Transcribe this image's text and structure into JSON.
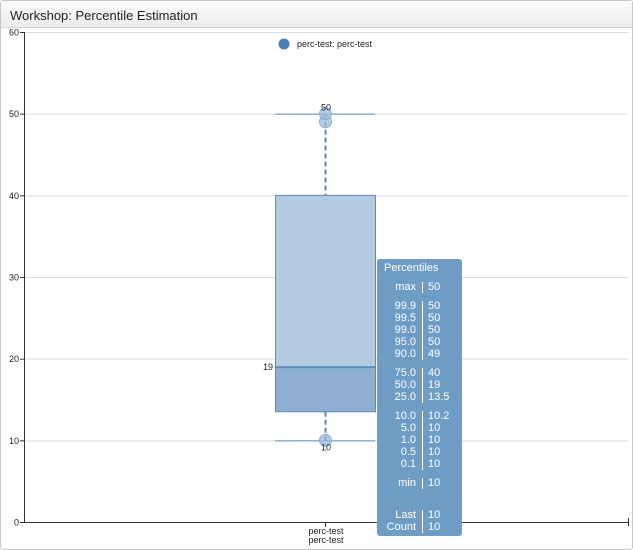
{
  "window": {
    "title": "Workshop: Percentile Estimation"
  },
  "legend": {
    "label": "perc-test: perc-test",
    "color": "#4a80b4"
  },
  "chart_data": {
    "type": "box",
    "categories": [
      "perc-test\nperc-test"
    ],
    "category_lines": [
      "perc-test",
      "perc-test"
    ],
    "ylim": [
      0,
      60
    ],
    "yticks": [
      0,
      10,
      20,
      30,
      40,
      50,
      60
    ],
    "grid": true,
    "legend_position": "top-center",
    "box": {
      "min": 10,
      "q1": 13.5,
      "median": 19,
      "q3": 40,
      "max": 50
    },
    "points": [
      10,
      49,
      50
    ],
    "labels": {
      "max": "50",
      "median": "19",
      "min": "10"
    },
    "colors": {
      "box_upper": "#b3cbe1",
      "box_lower": "#8fb0d2",
      "stroke": "#5b8dbb",
      "point": "#9bb9d8"
    }
  },
  "tooltip": {
    "title": "Percentiles",
    "groups": [
      [
        {
          "k": "max",
          "v": "50"
        }
      ],
      [
        {
          "k": "99.9",
          "v": "50"
        },
        {
          "k": "99.5",
          "v": "50"
        },
        {
          "k": "99.0",
          "v": "50"
        },
        {
          "k": "95.0",
          "v": "50"
        },
        {
          "k": "90.0",
          "v": "49"
        }
      ],
      [
        {
          "k": "75.0",
          "v": "40"
        },
        {
          "k": "50.0",
          "v": "19"
        },
        {
          "k": "25.0",
          "v": "13.5"
        }
      ],
      [
        {
          "k": "10.0",
          "v": "10.2"
        },
        {
          "k": "5.0",
          "v": "10"
        },
        {
          "k": "1.0",
          "v": "10"
        },
        {
          "k": "0.5",
          "v": "10"
        },
        {
          "k": "0.1",
          "v": "10"
        }
      ],
      [
        {
          "k": "min",
          "v": "10"
        }
      ],
      [
        {
          "k": "Last",
          "v": "10"
        },
        {
          "k": "Count",
          "v": "10"
        }
      ]
    ]
  }
}
